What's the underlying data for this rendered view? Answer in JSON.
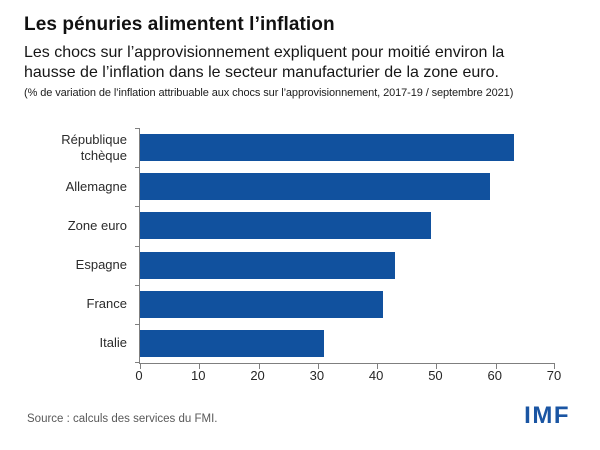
{
  "header": {
    "title": "Les pénuries alimentent l’inflation",
    "subtitle": "Les chocs sur l’approvisionnement expliquent pour moitié environ la hausse de l’inflation dans le secteur manufacturier de la zone euro.",
    "note": "(% de variation de l’inflation attribuable aux chocs sur l’approvisionnement, 2017-19 / septembre 2021)"
  },
  "chart_data": {
    "type": "bar",
    "orientation": "horizontal",
    "title": "Les pénuries alimentent l’inflation",
    "subtitle": "Les chocs sur l’approvisionnement expliquent pour moitié environ la hausse de l’inflation dans le secteur manufacturier de la zone euro.",
    "unit_note": "(% de variation de l’inflation attribuable aux chocs sur l’approvisionnement, 2017-19 / septembre 2021)",
    "categories": [
      "République tchèque",
      "Allemagne",
      "Zone euro",
      "Espagne",
      "France",
      "Italie"
    ],
    "values": [
      63,
      59,
      49,
      43,
      41,
      31
    ],
    "xlim": [
      0,
      70
    ],
    "xticks": [
      0,
      10,
      20,
      30,
      40,
      50,
      60,
      70
    ],
    "grid": false,
    "legend": false,
    "bar_color": "#11519e",
    "axis_color": "#7f7f7f"
  },
  "footer": {
    "source": "Source : calculs des services du FMI.",
    "logo": "IMF",
    "logo_color": "#1a55a3"
  }
}
